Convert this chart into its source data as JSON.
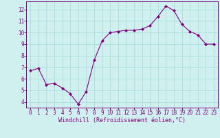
{
  "x": [
    0,
    1,
    2,
    3,
    4,
    5,
    6,
    7,
    8,
    9,
    10,
    11,
    12,
    13,
    14,
    15,
    16,
    17,
    18,
    19,
    20,
    21,
    22,
    23
  ],
  "y": [
    6.7,
    6.9,
    5.5,
    5.6,
    5.2,
    4.7,
    3.8,
    4.9,
    7.6,
    9.3,
    10.0,
    10.1,
    10.2,
    10.2,
    10.3,
    10.6,
    11.4,
    12.3,
    11.9,
    10.7,
    10.1,
    9.8,
    9.0,
    9.0
  ],
  "xlabel": "Windchill (Refroidissement éolien,°C)",
  "xlim": [
    -0.5,
    23.5
  ],
  "ylim": [
    3.5,
    12.7
  ],
  "yticks": [
    4,
    5,
    6,
    7,
    8,
    9,
    10,
    11,
    12
  ],
  "xticks": [
    0,
    1,
    2,
    3,
    4,
    5,
    6,
    7,
    8,
    9,
    10,
    11,
    12,
    13,
    14,
    15,
    16,
    17,
    18,
    19,
    20,
    21,
    22,
    23
  ],
  "line_color": "#800080",
  "marker_color": "#800080",
  "bg_color": "#d0f0f0",
  "grid_color": "#aadddd",
  "tick_label_color": "#800080",
  "axis_label_color": "#800080",
  "font_size_tick": 5.5,
  "font_size_label": 6.0
}
